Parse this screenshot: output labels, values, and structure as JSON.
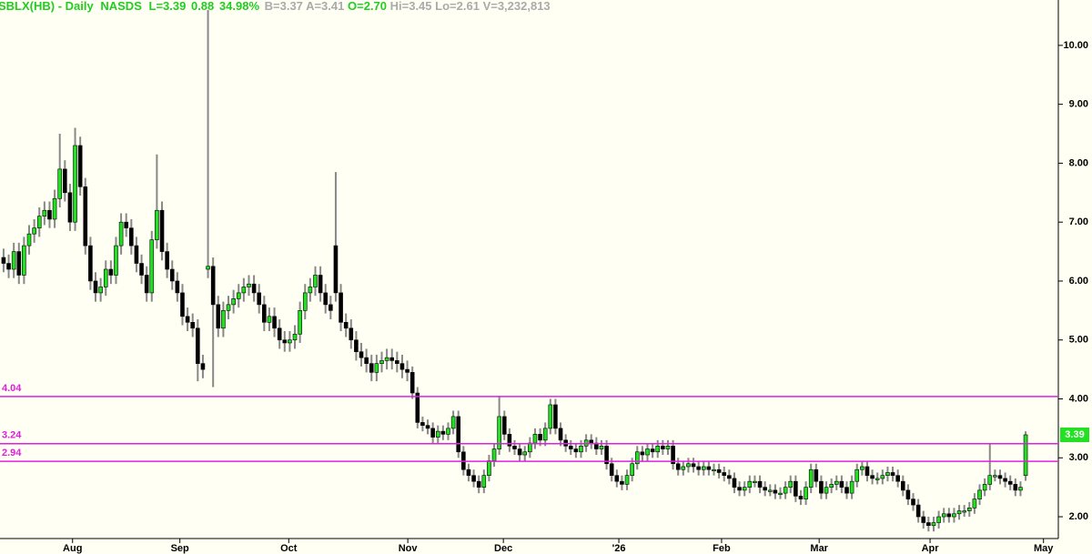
{
  "header": {
    "symbol": "SBLX(HB) - Daily",
    "exchange": "NASDS",
    "last": "L=3.39",
    "change": "0.88",
    "change_pct": "34.98%",
    "bid": "B=3.37",
    "ask": "A=3.41",
    "open": "O=2.70",
    "high": "Hi=3.45",
    "low": "Lo=2.61",
    "volume": "V=3,232,813"
  },
  "chart_data": {
    "type": "candlestick",
    "open": [
      6.4,
      6.3,
      6.2,
      6.5,
      6.1,
      6.6,
      6.8,
      6.9,
      7.1,
      7.2,
      7.05,
      7.4,
      7.9,
      7.5,
      7.0,
      8.3,
      7.6,
      6.6,
      6.0,
      5.8,
      5.9,
      6.2,
      6.1,
      6.6,
      7.0,
      6.9,
      6.6,
      6.3,
      6.1,
      5.8,
      6.7,
      7.2,
      6.5,
      6.2,
      6.0,
      5.8,
      5.4,
      5.3,
      5.2,
      4.6,
      6.2,
      6.25,
      5.6,
      5.2,
      5.5,
      5.6,
      5.7,
      5.8,
      5.9,
      5.95,
      5.8,
      5.6,
      5.3,
      5.4,
      5.2,
      5.0,
      4.95,
      5.0,
      5.1,
      5.5,
      5.8,
      5.9,
      6.1,
      5.8,
      5.6,
      6.6,
      5.8,
      5.3,
      5.2,
      5.0,
      4.8,
      4.7,
      4.6,
      4.45,
      4.6,
      4.65,
      4.7,
      4.65,
      4.6,
      4.5,
      4.45,
      4.1,
      3.6,
      3.55,
      3.5,
      3.35,
      3.45,
      3.4,
      3.5,
      3.7,
      3.1,
      2.8,
      2.7,
      2.6,
      2.5,
      2.7,
      2.95,
      3.15,
      3.7,
      3.4,
      3.2,
      3.15,
      3.05,
      3.1,
      3.25,
      3.4,
      3.3,
      3.5,
      3.9,
      3.5,
      3.3,
      3.2,
      3.15,
      3.1,
      3.2,
      3.3,
      3.25,
      3.15,
      3.2,
      2.9,
      2.7,
      2.6,
      2.55,
      2.7,
      2.9,
      3.1,
      3.05,
      3.15,
      3.1,
      3.2,
      3.15,
      3.2,
      2.9,
      2.8,
      2.85,
      2.9,
      2.85,
      2.8,
      2.85,
      2.8,
      2.8,
      2.75,
      2.7,
      2.65,
      2.5,
      2.45,
      2.5,
      2.6,
      2.6,
      2.5,
      2.45,
      2.45,
      2.4,
      2.4,
      2.5,
      2.6,
      2.35,
      2.3,
      2.5,
      2.8,
      2.6,
      2.4,
      2.5,
      2.55,
      2.6,
      2.5,
      2.4,
      2.6,
      2.8,
      2.85,
      2.7,
      2.65,
      2.65,
      2.7,
      2.75,
      2.7,
      2.6,
      2.45,
      2.3,
      2.2,
      2.0,
      1.9,
      1.85,
      1.9,
      2.0,
      2.05,
      2.0,
      2.05,
      2.1,
      2.1,
      2.15,
      2.3,
      2.45,
      2.55,
      2.7,
      2.7,
      2.65,
      2.6,
      2.55,
      2.45,
      2.7
    ],
    "high": [
      6.55,
      6.45,
      6.65,
      6.65,
      6.75,
      6.95,
      7.05,
      7.25,
      7.35,
      7.35,
      7.55,
      8.5,
      8.05,
      7.65,
      8.6,
      8.45,
      7.75,
      6.75,
      6.15,
      6.05,
      6.35,
      6.35,
      6.75,
      7.15,
      7.15,
      7.05,
      6.75,
      6.45,
      6.25,
      6.85,
      8.15,
      7.35,
      6.65,
      6.35,
      6.15,
      5.95,
      5.55,
      5.45,
      5.35,
      4.75,
      10.6,
      6.4,
      5.75,
      5.65,
      5.75,
      5.85,
      5.95,
      6.05,
      6.1,
      6.1,
      5.95,
      5.75,
      5.55,
      5.55,
      5.35,
      5.15,
      5.15,
      5.25,
      5.65,
      5.95,
      6.05,
      6.25,
      6.25,
      5.95,
      5.75,
      7.85,
      5.95,
      5.45,
      5.35,
      5.15,
      4.95,
      4.85,
      4.75,
      4.75,
      4.8,
      4.85,
      4.85,
      4.8,
      4.75,
      4.65,
      4.55,
      4.2,
      3.7,
      3.65,
      3.6,
      3.55,
      3.55,
      3.6,
      3.8,
      3.8,
      3.2,
      2.9,
      2.8,
      2.7,
      2.8,
      3.05,
      3.25,
      4.05,
      3.8,
      3.5,
      3.3,
      3.25,
      3.2,
      3.35,
      3.5,
      3.5,
      3.6,
      4.0,
      4.0,
      3.6,
      3.4,
      3.3,
      3.25,
      3.3,
      3.4,
      3.4,
      3.35,
      3.3,
      3.3,
      3.0,
      2.8,
      2.7,
      2.8,
      3.0,
      3.2,
      3.2,
      3.25,
      3.25,
      3.3,
      3.3,
      3.3,
      3.3,
      3.0,
      2.95,
      3.0,
      3.0,
      2.95,
      2.95,
      2.95,
      2.9,
      2.9,
      2.85,
      2.8,
      2.75,
      2.6,
      2.6,
      2.7,
      2.7,
      2.7,
      2.6,
      2.55,
      2.55,
      2.5,
      2.6,
      2.7,
      2.7,
      2.45,
      2.6,
      2.9,
      2.9,
      2.7,
      2.6,
      2.65,
      2.7,
      2.7,
      2.6,
      2.7,
      2.9,
      2.95,
      2.95,
      2.8,
      2.75,
      2.8,
      2.85,
      2.85,
      2.8,
      2.7,
      2.55,
      2.4,
      2.3,
      2.1,
      2.0,
      2.0,
      2.1,
      2.15,
      2.15,
      2.15,
      2.2,
      2.2,
      2.25,
      2.4,
      2.55,
      2.65,
      3.25,
      2.8,
      2.8,
      2.75,
      2.7,
      2.65,
      2.6,
      3.45
    ],
    "low": [
      6.15,
      6.05,
      6.05,
      5.95,
      5.95,
      6.45,
      6.65,
      6.75,
      6.95,
      6.9,
      6.9,
      7.25,
      7.35,
      6.85,
      6.85,
      7.45,
      6.45,
      5.85,
      5.65,
      5.65,
      5.75,
      5.95,
      5.95,
      6.45,
      6.75,
      6.45,
      6.15,
      5.95,
      5.65,
      5.65,
      6.55,
      6.35,
      6.05,
      5.85,
      5.65,
      5.25,
      5.15,
      5.05,
      4.3,
      4.35,
      6.05,
      4.2,
      5.05,
      5.05,
      5.35,
      5.45,
      5.55,
      5.65,
      5.75,
      5.65,
      5.45,
      5.15,
      5.15,
      5.05,
      4.85,
      4.8,
      4.8,
      4.85,
      4.95,
      5.35,
      5.65,
      5.75,
      5.65,
      5.45,
      5.35,
      5.65,
      5.15,
      5.05,
      4.85,
      4.65,
      4.55,
      4.45,
      4.3,
      4.3,
      4.45,
      4.5,
      4.5,
      4.45,
      4.35,
      4.3,
      4.0,
      3.5,
      3.45,
      3.4,
      3.25,
      3.25,
      3.3,
      3.3,
      3.4,
      3.0,
      2.7,
      2.6,
      2.5,
      2.4,
      2.4,
      2.6,
      2.85,
      3.05,
      3.3,
      3.1,
      3.05,
      2.95,
      2.95,
      3.0,
      3.15,
      3.2,
      3.2,
      3.4,
      3.4,
      3.2,
      3.1,
      3.05,
      3.0,
      3.0,
      3.1,
      3.15,
      3.05,
      3.05,
      2.8,
      2.6,
      2.5,
      2.45,
      2.45,
      2.6,
      2.8,
      2.95,
      2.95,
      3.0,
      3.0,
      3.05,
      3.05,
      2.8,
      2.7,
      2.7,
      2.75,
      2.75,
      2.7,
      2.7,
      2.7,
      2.7,
      2.65,
      2.6,
      2.55,
      2.4,
      2.35,
      2.35,
      2.4,
      2.5,
      2.4,
      2.35,
      2.35,
      2.3,
      2.3,
      2.3,
      2.4,
      2.25,
      2.2,
      2.2,
      2.4,
      2.5,
      2.3,
      2.3,
      2.4,
      2.45,
      2.4,
      2.3,
      2.3,
      2.5,
      2.7,
      2.6,
      2.55,
      2.55,
      2.55,
      2.6,
      2.6,
      2.5,
      2.35,
      2.2,
      2.1,
      1.9,
      1.8,
      1.75,
      1.75,
      1.8,
      1.9,
      1.9,
      1.9,
      1.95,
      2.0,
      2.0,
      2.05,
      2.2,
      2.35,
      2.45,
      2.6,
      2.55,
      2.5,
      2.45,
      2.35,
      2.35,
      2.61
    ],
    "close": [
      6.3,
      6.2,
      6.5,
      6.1,
      6.6,
      6.8,
      6.9,
      7.1,
      7.2,
      7.05,
      7.4,
      7.9,
      7.5,
      7.0,
      8.3,
      7.6,
      6.6,
      6.0,
      5.8,
      5.9,
      6.2,
      6.1,
      6.6,
      7.0,
      6.9,
      6.6,
      6.3,
      6.1,
      5.8,
      6.7,
      7.2,
      6.5,
      6.2,
      6.0,
      5.8,
      5.4,
      5.3,
      5.2,
      4.6,
      4.5,
      6.25,
      5.6,
      5.2,
      5.5,
      5.6,
      5.7,
      5.8,
      5.9,
      5.95,
      5.8,
      5.6,
      5.3,
      5.4,
      5.2,
      5.0,
      4.95,
      5.0,
      5.1,
      5.5,
      5.8,
      5.9,
      6.1,
      5.8,
      5.6,
      5.5,
      5.8,
      5.3,
      5.2,
      5.0,
      4.8,
      4.7,
      4.6,
      4.45,
      4.6,
      4.65,
      4.7,
      4.65,
      4.6,
      4.5,
      4.45,
      4.1,
      3.6,
      3.55,
      3.5,
      3.35,
      3.45,
      3.4,
      3.5,
      3.7,
      3.1,
      2.8,
      2.7,
      2.6,
      2.5,
      2.7,
      2.95,
      3.15,
      3.7,
      3.4,
      3.2,
      3.15,
      3.05,
      3.1,
      3.25,
      3.4,
      3.3,
      3.5,
      3.9,
      3.5,
      3.3,
      3.2,
      3.15,
      3.1,
      3.2,
      3.3,
      3.25,
      3.15,
      3.2,
      2.9,
      2.7,
      2.6,
      2.55,
      2.7,
      2.9,
      3.1,
      3.05,
      3.15,
      3.1,
      3.2,
      3.15,
      3.2,
      2.9,
      2.8,
      2.85,
      2.9,
      2.85,
      2.8,
      2.85,
      2.8,
      2.8,
      2.75,
      2.7,
      2.65,
      2.5,
      2.45,
      2.5,
      2.6,
      2.6,
      2.5,
      2.45,
      2.45,
      2.4,
      2.4,
      2.5,
      2.6,
      2.35,
      2.3,
      2.5,
      2.8,
      2.6,
      2.4,
      2.5,
      2.55,
      2.6,
      2.5,
      2.4,
      2.6,
      2.8,
      2.85,
      2.7,
      2.65,
      2.65,
      2.7,
      2.75,
      2.7,
      2.6,
      2.45,
      2.3,
      2.2,
      2.0,
      1.9,
      1.85,
      1.9,
      2.0,
      2.05,
      2.0,
      2.05,
      2.1,
      2.1,
      2.15,
      2.3,
      2.45,
      2.55,
      2.7,
      2.7,
      2.65,
      2.6,
      2.55,
      2.45,
      2.5,
      3.39
    ],
    "xlim": [
      -0.7,
      206.4
    ],
    "xticks": [
      {
        "value": 13.5,
        "label": "Aug"
      },
      {
        "value": 34.5,
        "label": "Sep"
      },
      {
        "value": 55.8,
        "label": "Oct"
      },
      {
        "value": 79.1,
        "label": "Nov"
      },
      {
        "value": 97.8,
        "label": "Dec"
      },
      {
        "value": 120.4,
        "label": "'26"
      },
      {
        "value": 140.5,
        "label": "Feb"
      },
      {
        "value": 159.6,
        "label": "Mar"
      },
      {
        "value": 181.3,
        "label": "Apr"
      },
      {
        "value": 203.5,
        "label": "May"
      }
    ],
    "ylim": [
      1.63,
      10.77
    ],
    "yticks": [
      {
        "value": 2,
        "label": "2.00"
      },
      {
        "value": 3,
        "label": "3.00"
      },
      {
        "value": 4,
        "label": "4.00"
      },
      {
        "value": 5,
        "label": "5.00"
      },
      {
        "value": 6,
        "label": "6.00"
      },
      {
        "value": 7,
        "label": "7.00"
      },
      {
        "value": 8,
        "label": "8.00"
      },
      {
        "value": 9,
        "label": "9.00"
      },
      {
        "value": 10,
        "label": "10.00"
      }
    ],
    "hlines": [
      4.04,
      3.24,
      2.94
    ],
    "up_color": "#22e022",
    "down_color": "#000000",
    "wick_color": "#888888",
    "line_color": "#e020e0"
  }
}
